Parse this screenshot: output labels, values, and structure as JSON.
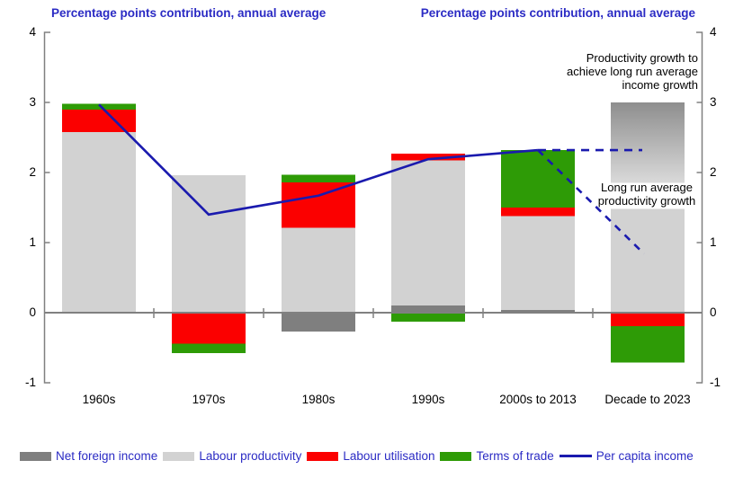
{
  "page": {
    "title_left": "Percentage points contribution, annual average",
    "title_right": "Percentage points contribution, annual average"
  },
  "annotations": {
    "needed_productivity": "Productivity growth to\nachieve long run average\nincome growth",
    "longrun_productivity": "Long run average\nproductivity growth"
  },
  "colors": {
    "net_foreign_income": "#7f7f7f",
    "labour_productivity": "#d2d2d2",
    "labour_utilisation": "#fb0000",
    "terms_of_trade": "#2e9b06",
    "per_capita_income": "#1a1aae",
    "heading_text": "#2b2bc4",
    "axis": "#808080",
    "gradient_top": "#8e8e8e",
    "gradient_bottom": "#dadada"
  },
  "chart_data": {
    "type": "bar",
    "title": "Percentage points contribution, annual average",
    "ylabel": "Percentage points",
    "ylim": [
      -1,
      4
    ],
    "y_ticks": [
      4,
      3,
      2,
      1,
      0,
      -1
    ],
    "grid": false,
    "legend_position": "bottom",
    "categories": [
      "1960s",
      "1970s",
      "1980s",
      "1990s",
      "2000s to 2013",
      "Decade to 2023"
    ],
    "series": [
      {
        "name": "Net foreign income",
        "color_key": "net_foreign_income",
        "values": [
          0,
          0,
          -0.27,
          0.1,
          0.04,
          0
        ]
      },
      {
        "name": "Labour productivity",
        "color_key": "labour_productivity",
        "values": [
          2.58,
          1.96,
          1.21,
          2.07,
          1.34,
          0
        ]
      },
      {
        "name": "Labour utilisation",
        "color_key": "labour_utilisation",
        "values": [
          0.32,
          -0.44,
          0.65,
          0.1,
          0.12,
          -0.19
        ]
      },
      {
        "name": "Terms of trade",
        "color_key": "terms_of_trade",
        "values": [
          0.08,
          -0.14,
          0.11,
          -0.13,
          0.82,
          -0.52
        ]
      }
    ],
    "line_series": {
      "name": "Per capita income",
      "color_key": "per_capita_income",
      "values": [
        2.97,
        1.4,
        1.67,
        2.19,
        2.32,
        null
      ]
    },
    "projection": {
      "from_category_index": 4,
      "to_category_index": 5,
      "flat_value": 2.32,
      "decline_to_value": 0.84
    },
    "special_bars": {
      "needed_productivity_range": [
        1.85,
        3.0
      ],
      "longrun_productivity_range": [
        0,
        1.48
      ],
      "category_index": 5
    }
  },
  "legend": [
    {
      "label": "Net foreign income",
      "type": "swatch",
      "color_key": "net_foreign_income"
    },
    {
      "label": "Labour productivity",
      "type": "swatch",
      "color_key": "labour_productivity"
    },
    {
      "label": "Labour utilisation",
      "type": "swatch",
      "color_key": "labour_utilisation"
    },
    {
      "label": "Terms of trade",
      "type": "swatch",
      "color_key": "terms_of_trade"
    },
    {
      "label": "Per capita income",
      "type": "line",
      "color_key": "per_capita_income"
    }
  ]
}
